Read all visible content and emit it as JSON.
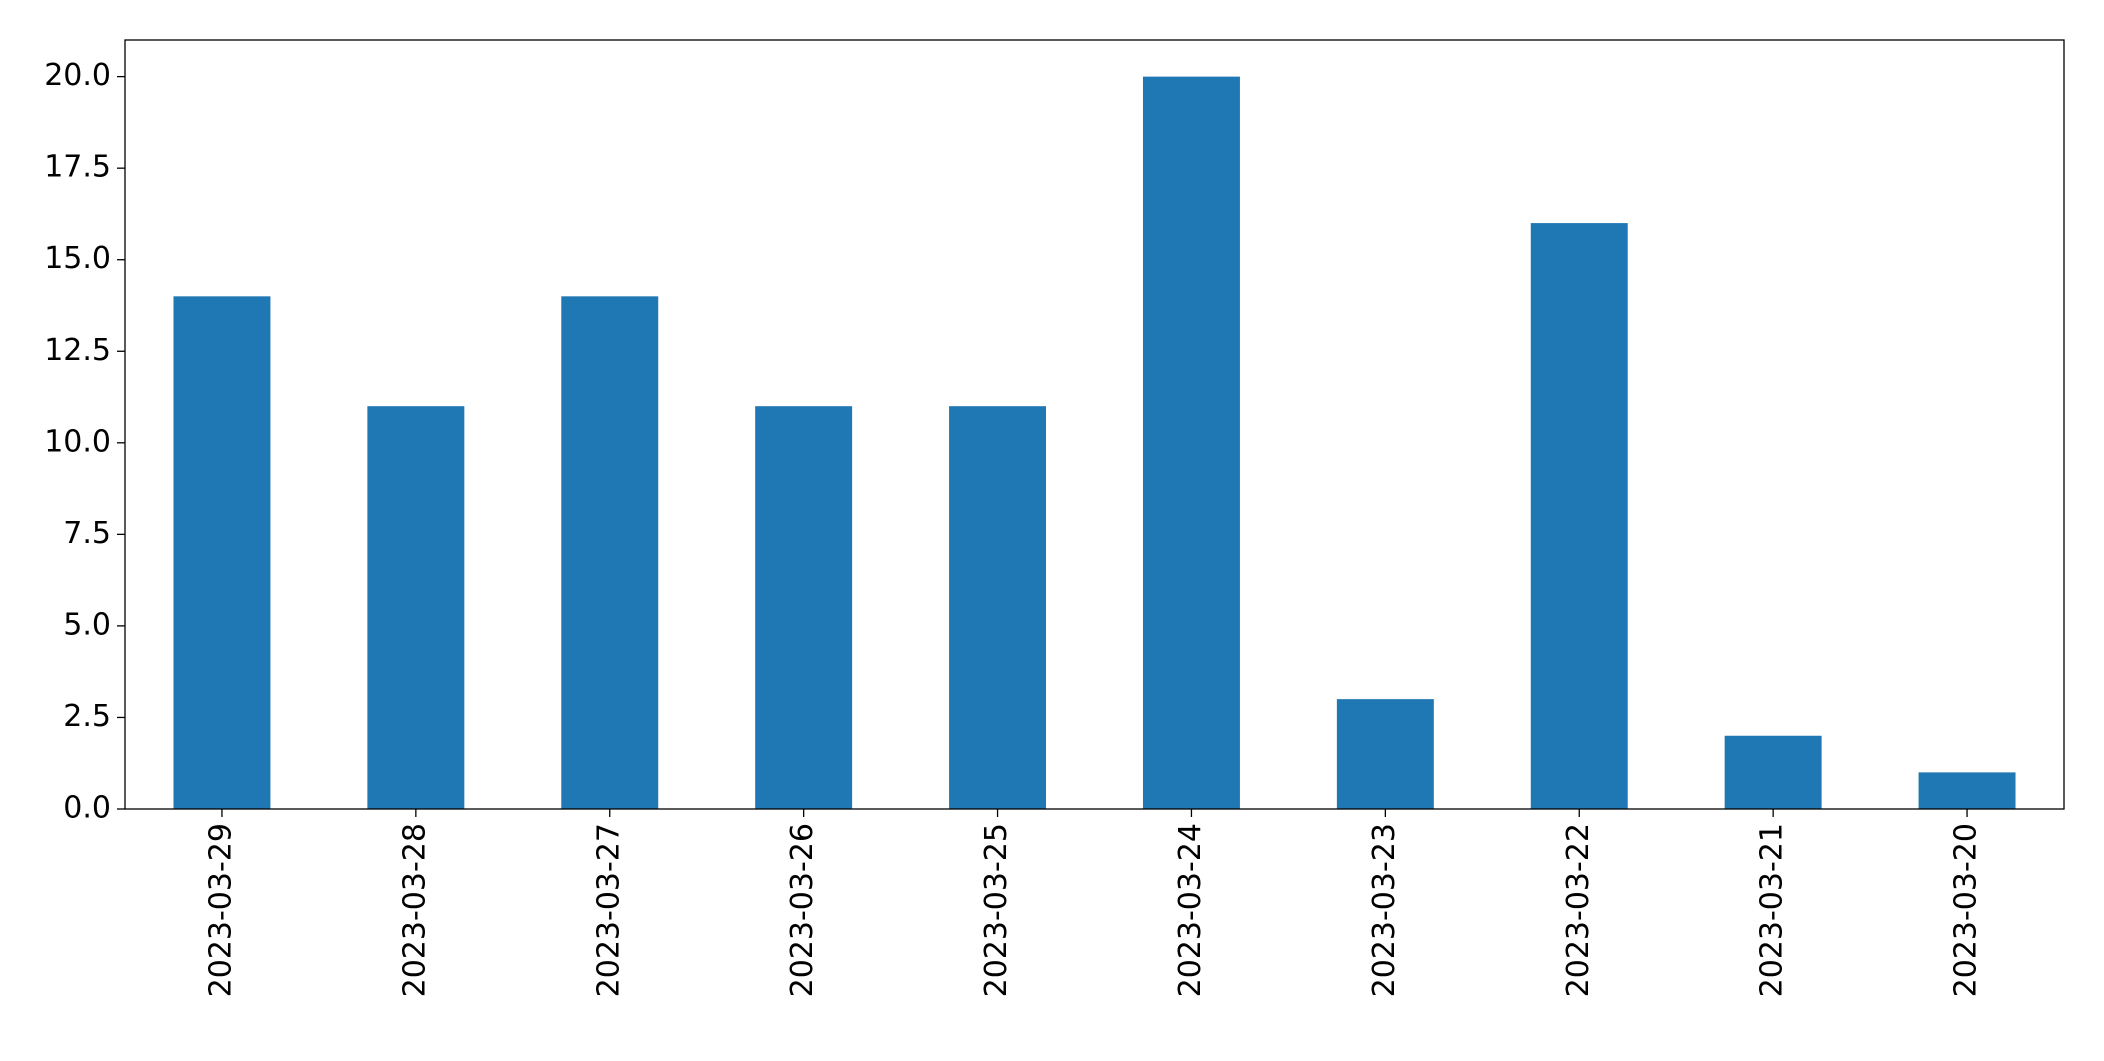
{
  "chart_data": {
    "type": "bar",
    "categories": [
      "2023-03-29",
      "2023-03-28",
      "2023-03-27",
      "2023-03-26",
      "2023-03-25",
      "2023-03-24",
      "2023-03-23",
      "2023-03-22",
      "2023-03-21",
      "2023-03-20"
    ],
    "values": [
      14,
      11,
      14,
      11,
      11,
      20,
      3,
      16,
      2,
      1
    ],
    "color": "#1f77b4",
    "ylim": [
      0,
      21
    ],
    "yticks": [
      {
        "value": 0,
        "label": "0.0"
      },
      {
        "value": 2.5,
        "label": "2.5"
      },
      {
        "value": 5,
        "label": "5.0"
      },
      {
        "value": 7.5,
        "label": "7.5"
      },
      {
        "value": 10,
        "label": "10.0"
      },
      {
        "value": 12.5,
        "label": "12.5"
      },
      {
        "value": 15,
        "label": "15.0"
      },
      {
        "value": 17.5,
        "label": "17.5"
      },
      {
        "value": 20,
        "label": "20.0"
      }
    ],
    "grid": false
  }
}
